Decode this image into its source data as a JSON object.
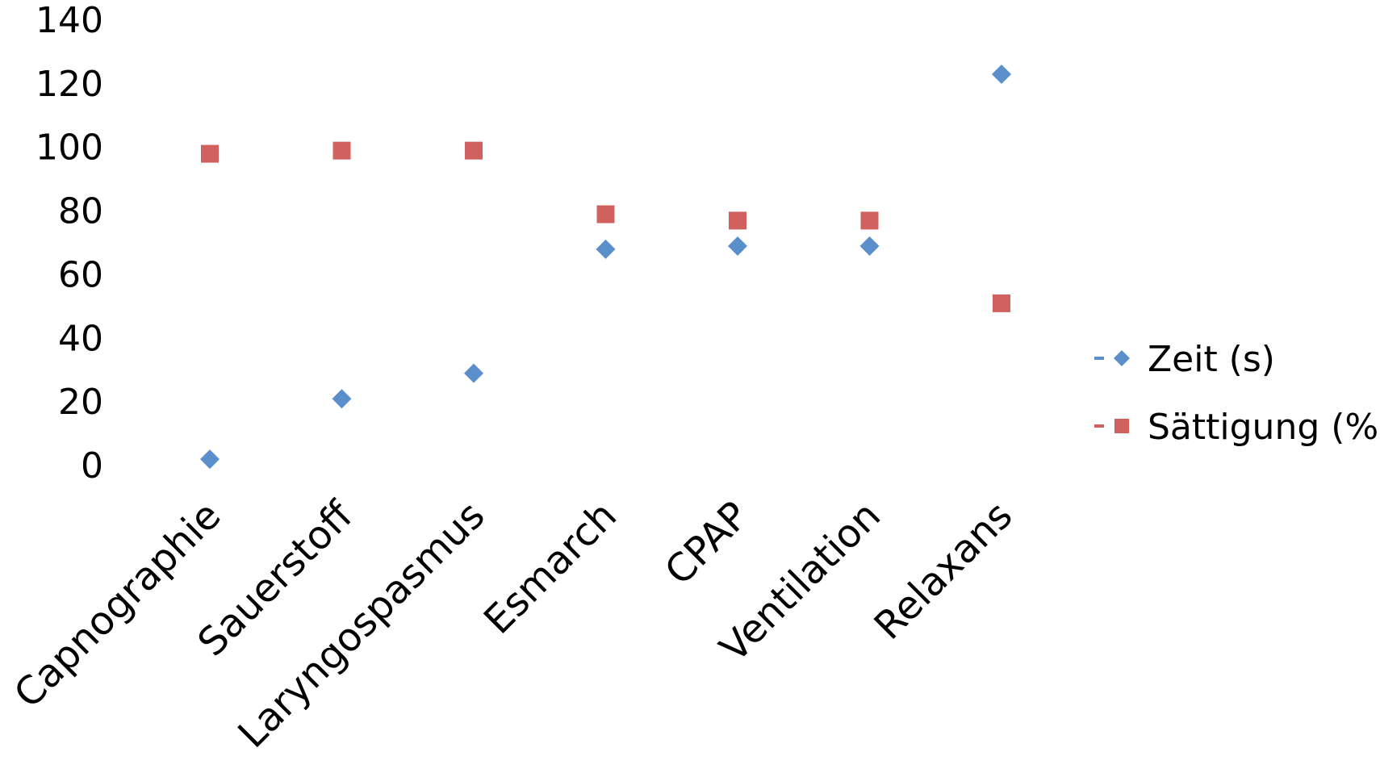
{
  "chart_data": {
    "type": "scatter",
    "title": "",
    "xlabel": "",
    "ylabel": "",
    "categories": [
      "Capnographie",
      "Sauerstoff",
      "Laryngospasmus",
      "Esmarch",
      "CPAP",
      "Ventilation",
      "Relaxans"
    ],
    "ylim": [
      0,
      140
    ],
    "yticks": [
      "0",
      "20",
      "40",
      "60",
      "80",
      "100",
      "120",
      "140"
    ],
    "grid": false,
    "legend_position": "right",
    "series": [
      {
        "name": "Zeit (s)",
        "marker": "diamond",
        "color": "#5B8FCC",
        "values": [
          2,
          21,
          29,
          68,
          69,
          69,
          123
        ]
      },
      {
        "name": "Sättigung (%)",
        "marker": "square",
        "color": "#D0615F",
        "values": [
          98,
          99,
          99,
          79,
          77,
          77,
          51
        ]
      }
    ]
  }
}
